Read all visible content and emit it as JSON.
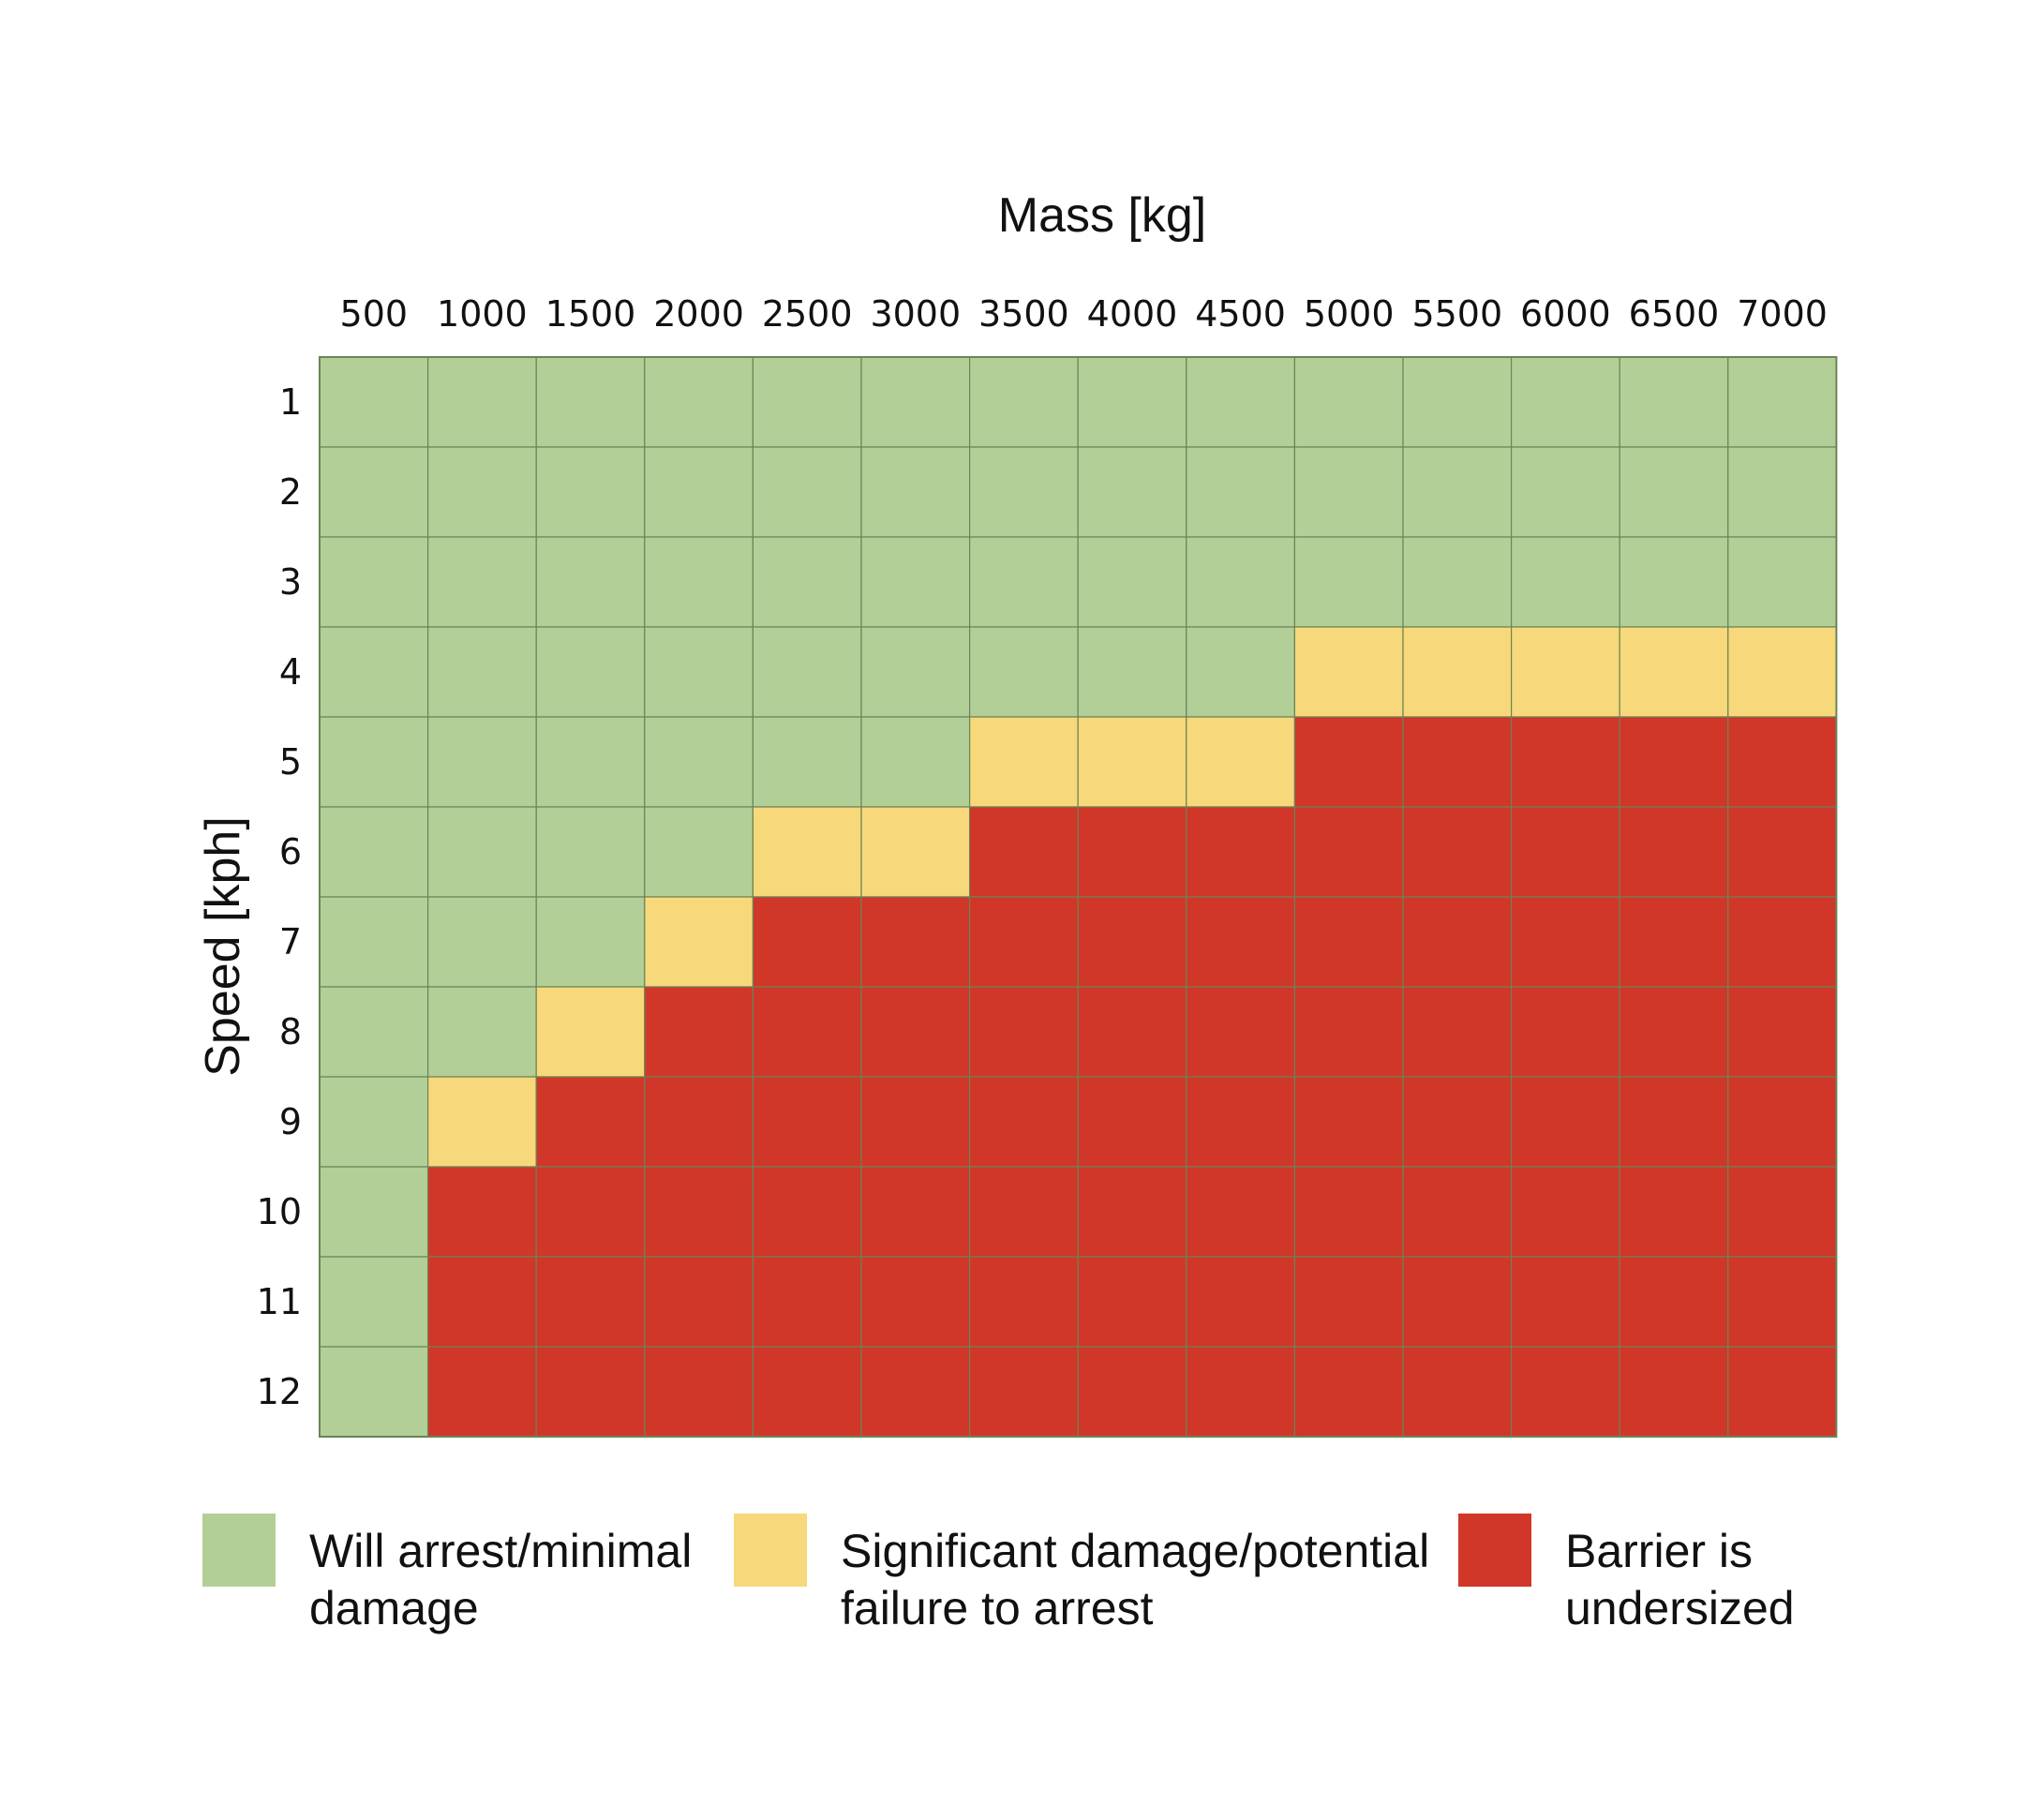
{
  "chart_data": {
    "type": "heatmap",
    "title": "",
    "xlabel": "Mass [kg]",
    "ylabel": "Speed [kph]",
    "x_categories": [
      "500",
      "1000",
      "1500",
      "2000",
      "2500",
      "3000",
      "3500",
      "4000",
      "4500",
      "5000",
      "5500",
      "6000",
      "6500",
      "7000"
    ],
    "y_categories": [
      "1",
      "2",
      "3",
      "4",
      "5",
      "6",
      "7",
      "8",
      "9",
      "10",
      "11",
      "12"
    ],
    "colors": {
      "G": "#b2cf98",
      "Y": "#f7d87a",
      "R": "#d03728",
      "grid": "#6a8456"
    },
    "cells": [
      [
        "G",
        "G",
        "G",
        "G",
        "G",
        "G",
        "G",
        "G",
        "G",
        "G",
        "G",
        "G",
        "G",
        "G"
      ],
      [
        "G",
        "G",
        "G",
        "G",
        "G",
        "G",
        "G",
        "G",
        "G",
        "G",
        "G",
        "G",
        "G",
        "G"
      ],
      [
        "G",
        "G",
        "G",
        "G",
        "G",
        "G",
        "G",
        "G",
        "G",
        "G",
        "G",
        "G",
        "G",
        "G"
      ],
      [
        "G",
        "G",
        "G",
        "G",
        "G",
        "G",
        "G",
        "G",
        "G",
        "Y",
        "Y",
        "Y",
        "Y",
        "Y"
      ],
      [
        "G",
        "G",
        "G",
        "G",
        "G",
        "G",
        "Y",
        "Y",
        "Y",
        "R",
        "R",
        "R",
        "R",
        "R"
      ],
      [
        "G",
        "G",
        "G",
        "G",
        "Y",
        "Y",
        "R",
        "R",
        "R",
        "R",
        "R",
        "R",
        "R",
        "R"
      ],
      [
        "G",
        "G",
        "G",
        "Y",
        "R",
        "R",
        "R",
        "R",
        "R",
        "R",
        "R",
        "R",
        "R",
        "R"
      ],
      [
        "G",
        "G",
        "Y",
        "R",
        "R",
        "R",
        "R",
        "R",
        "R",
        "R",
        "R",
        "R",
        "R",
        "R"
      ],
      [
        "G",
        "Y",
        "R",
        "R",
        "R",
        "R",
        "R",
        "R",
        "R",
        "R",
        "R",
        "R",
        "R",
        "R"
      ],
      [
        "G",
        "R",
        "R",
        "R",
        "R",
        "R",
        "R",
        "R",
        "R",
        "R",
        "R",
        "R",
        "R",
        "R"
      ],
      [
        "G",
        "R",
        "R",
        "R",
        "R",
        "R",
        "R",
        "R",
        "R",
        "R",
        "R",
        "R",
        "R",
        "R"
      ],
      [
        "G",
        "R",
        "R",
        "R",
        "R",
        "R",
        "R",
        "R",
        "R",
        "R",
        "R",
        "R",
        "R",
        "R"
      ]
    ],
    "legend": [
      {
        "key": "G",
        "lines": [
          "Will arrest/minimal",
          "damage"
        ]
      },
      {
        "key": "Y",
        "lines": [
          "Significant damage/potential",
          "failure to arrest"
        ]
      },
      {
        "key": "R",
        "lines": [
          "Barrier is",
          "undersized"
        ]
      }
    ],
    "legend_position": "bottom"
  }
}
